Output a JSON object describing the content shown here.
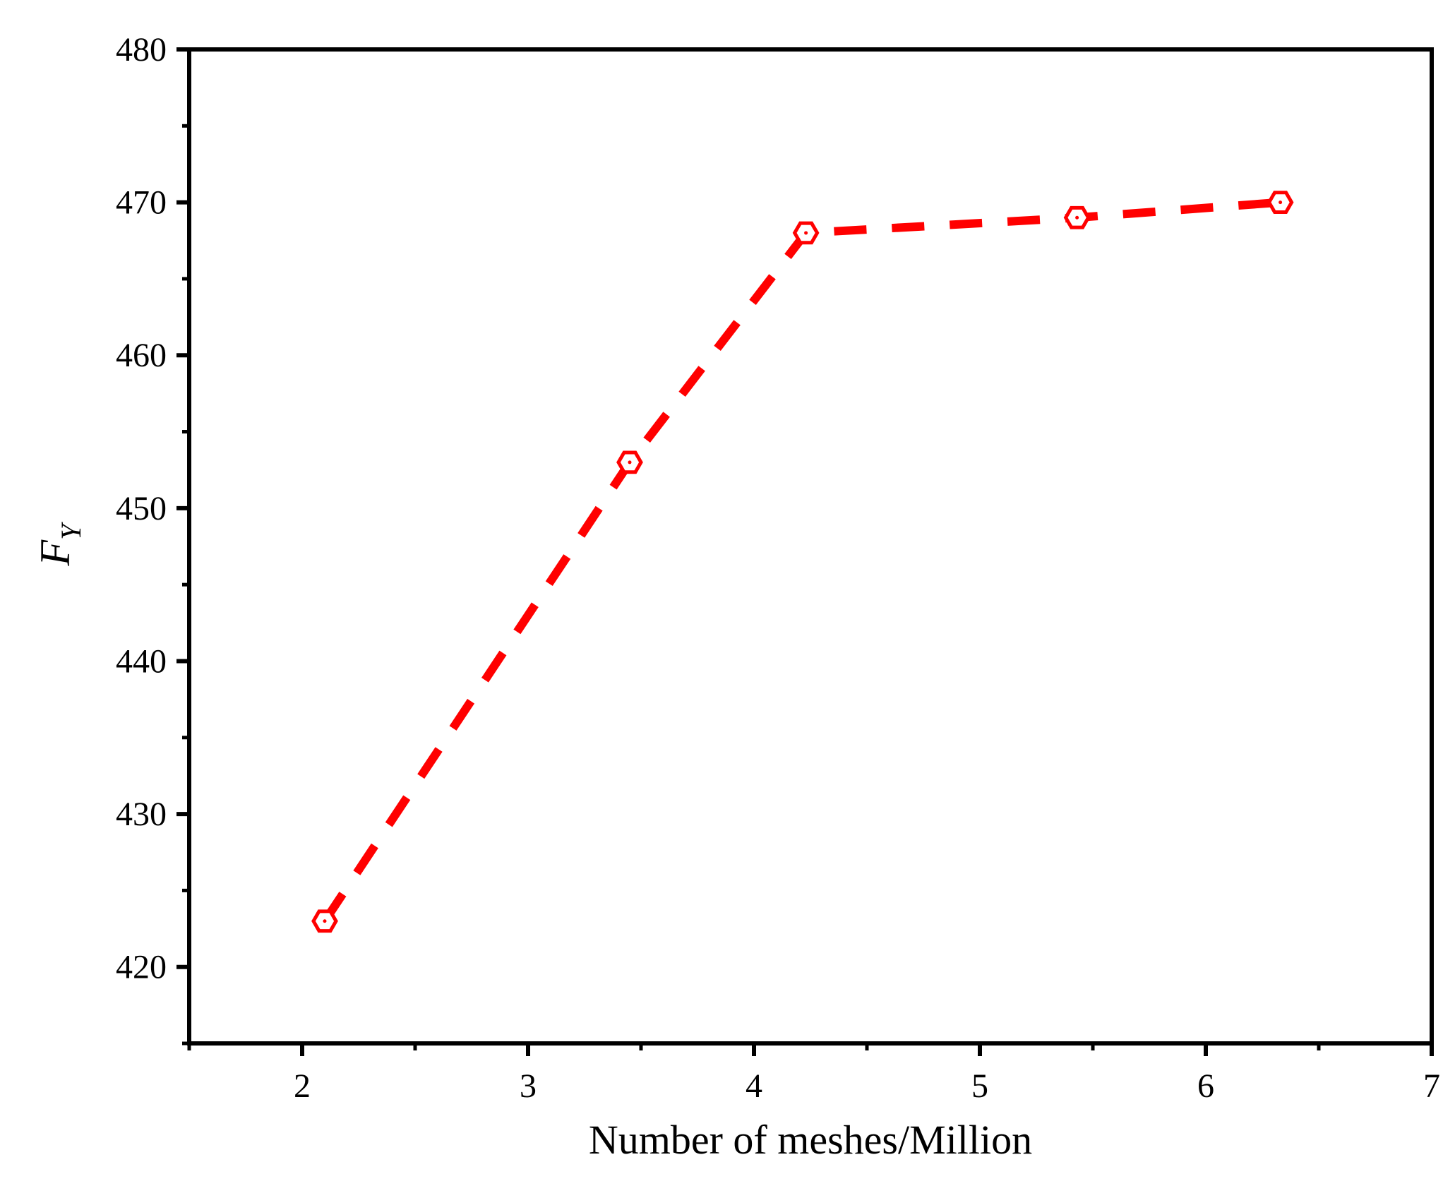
{
  "chart_data": {
    "type": "line",
    "title": "",
    "xlabel": "Number of meshes/Million",
    "ylabel_main": "F",
    "ylabel_sub": "Y",
    "xlim": [
      1.5,
      7
    ],
    "ylim": [
      415,
      480
    ],
    "x_ticks": [
      2,
      3,
      4,
      5,
      6,
      7
    ],
    "x_tick_labels": [
      "2",
      "3",
      "4",
      "5",
      "6",
      "7"
    ],
    "y_ticks": [
      420,
      430,
      440,
      450,
      460,
      470,
      480
    ],
    "y_tick_labels": [
      "420",
      "430",
      "440",
      "450",
      "460",
      "470",
      "480"
    ],
    "grid": false,
    "legend": "none",
    "series": [
      {
        "color": "#ff0000",
        "line_style": "dashed",
        "marker": "open-hexagon",
        "x": [
          2.1,
          3.45,
          4.23,
          5.43,
          6.33
        ],
        "y": [
          423,
          453,
          468,
          469,
          470
        ]
      }
    ]
  }
}
